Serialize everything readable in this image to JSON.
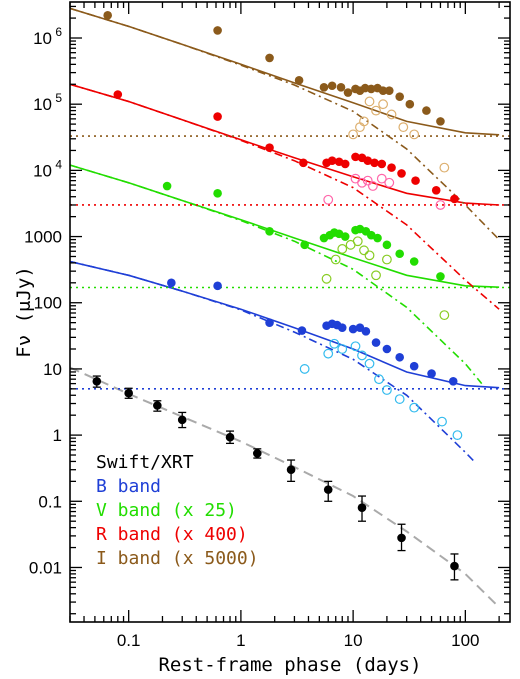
{
  "chart_data": {
    "type": "scatter",
    "title": "",
    "xlabel": "Rest-frame phase (days)",
    "ylabel": "Fν (μJy)",
    "x_scale": "log",
    "y_scale": "log",
    "xlim": [
      0.03,
      250
    ],
    "ylim": [
      0.0015,
      3500000
    ],
    "x_major_ticks": [
      {
        "value": 0.1,
        "label": "0.1"
      },
      {
        "value": 1,
        "label": "1"
      },
      {
        "value": 10,
        "label": "10"
      },
      {
        "value": 100,
        "label": "100"
      }
    ],
    "y_major_ticks": [
      {
        "value": 0.01,
        "label": "0.01"
      },
      {
        "value": 0.1,
        "label": "0.1"
      },
      {
        "value": 1,
        "label": "1"
      },
      {
        "value": 10,
        "label": "10"
      },
      {
        "value": 100,
        "label": "100"
      },
      {
        "value": 1000,
        "label": "1000"
      },
      {
        "value": 10000,
        "label": "10",
        "exponent": "4"
      },
      {
        "value": 100000,
        "label": "10",
        "exponent": "5"
      },
      {
        "value": 1000000,
        "label": "10",
        "exponent": "6"
      }
    ],
    "grid": false,
    "legend_position": "bottom-left",
    "legend": [
      {
        "label": "Swift/XRT",
        "color": "#000000"
      },
      {
        "label": "B band",
        "color": "#1f3fd6"
      },
      {
        "label": "V band (x 25)",
        "color": "#22dd00"
      },
      {
        "label": "R band (x 400)",
        "color": "#ee0000"
      },
      {
        "label": "I band (x 5000)",
        "color": "#8b5a1b"
      }
    ],
    "series": [
      {
        "name": "Swift/XRT",
        "color": "#000000",
        "marker": "filled-circle",
        "points": [
          {
            "x": 0.052,
            "y": 6.5,
            "ylo": 5.3,
            "yhi": 7.8
          },
          {
            "x": 0.1,
            "y": 4.3,
            "ylo": 3.6,
            "yhi": 5.1
          },
          {
            "x": 0.18,
            "y": 2.8,
            "ylo": 2.3,
            "yhi": 3.3
          },
          {
            "x": 0.3,
            "y": 1.7,
            "ylo": 1.3,
            "yhi": 2.2
          },
          {
            "x": 0.8,
            "y": 0.93,
            "ylo": 0.75,
            "yhi": 1.15
          },
          {
            "x": 1.4,
            "y": 0.53,
            "ylo": 0.45,
            "yhi": 0.62
          },
          {
            "x": 2.8,
            "y": 0.3,
            "ylo": 0.2,
            "yhi": 0.42
          },
          {
            "x": 6,
            "y": 0.15,
            "ylo": 0.1,
            "yhi": 0.2
          },
          {
            "x": 12,
            "y": 0.08,
            "ylo": 0.05,
            "yhi": 0.12
          },
          {
            "x": 27,
            "y": 0.028,
            "ylo": 0.018,
            "yhi": 0.045
          },
          {
            "x": 80,
            "y": 0.0105,
            "ylo": 0.0065,
            "yhi": 0.016
          }
        ]
      },
      {
        "name": "B band",
        "color": "#1f3fd6",
        "open_color": "#33bbee",
        "points_filled": [
          {
            "x": 0.24,
            "y": 200
          },
          {
            "x": 0.62,
            "y": 180
          },
          {
            "x": 1.8,
            "y": 50
          },
          {
            "x": 3.5,
            "y": 38
          },
          {
            "x": 5.8,
            "y": 45
          },
          {
            "x": 6.5,
            "y": 48
          },
          {
            "x": 7.2,
            "y": 46
          },
          {
            "x": 8,
            "y": 42
          },
          {
            "x": 10,
            "y": 40
          },
          {
            "x": 11.5,
            "y": 42
          },
          {
            "x": 13,
            "y": 37
          },
          {
            "x": 16,
            "y": 25
          },
          {
            "x": 20,
            "y": 20
          },
          {
            "x": 26,
            "y": 15
          },
          {
            "x": 35,
            "y": 11
          },
          {
            "x": 50,
            "y": 8.5
          },
          {
            "x": 78,
            "y": 6.5
          }
        ],
        "points_open": [
          {
            "x": 3.7,
            "y": 10
          },
          {
            "x": 6,
            "y": 17
          },
          {
            "x": 6.8,
            "y": 24
          },
          {
            "x": 8,
            "y": 20
          },
          {
            "x": 10.5,
            "y": 22
          },
          {
            "x": 12,
            "y": 16
          },
          {
            "x": 14,
            "y": 12
          },
          {
            "x": 17,
            "y": 7
          },
          {
            "x": 20,
            "y": 4.8
          },
          {
            "x": 26,
            "y": 3.5
          },
          {
            "x": 35,
            "y": 2.6
          },
          {
            "x": 62,
            "y": 1.6
          },
          {
            "x": 85,
            "y": 1
          }
        ],
        "model_a": [
          {
            "x": 0.03,
            "y": 420
          },
          {
            "x": 0.1,
            "y": 260
          },
          {
            "x": 0.3,
            "y": 150
          },
          {
            "x": 1,
            "y": 80
          },
          {
            "x": 3,
            "y": 42
          },
          {
            "x": 10,
            "y": 20
          },
          {
            "x": 30,
            "y": 9
          },
          {
            "x": 100,
            "y": 5.6
          },
          {
            "x": 200,
            "y": 5.2
          }
        ],
        "model_b": [
          {
            "x": 0.03,
            "y": 420
          },
          {
            "x": 0.1,
            "y": 260
          },
          {
            "x": 0.3,
            "y": 150
          },
          {
            "x": 1,
            "y": 78
          },
          {
            "x": 3,
            "y": 36
          },
          {
            "x": 10,
            "y": 14
          },
          {
            "x": 30,
            "y": 4
          },
          {
            "x": 100,
            "y": 0.55
          },
          {
            "x": 120,
            "y": 0.4
          }
        ],
        "baseline": 5
      },
      {
        "name": "V band (x 25)",
        "color": "#22dd00",
        "open_color": "#88cc22",
        "points_filled": [
          {
            "x": 0.22,
            "y": 5800
          },
          {
            "x": 0.62,
            "y": 4500
          },
          {
            "x": 1.8,
            "y": 1200
          },
          {
            "x": 3.7,
            "y": 750
          },
          {
            "x": 5.5,
            "y": 950
          },
          {
            "x": 6.2,
            "y": 1050
          },
          {
            "x": 6.8,
            "y": 1150
          },
          {
            "x": 7.5,
            "y": 1100
          },
          {
            "x": 8.5,
            "y": 1000
          },
          {
            "x": 10.5,
            "y": 1250
          },
          {
            "x": 11.5,
            "y": 1300
          },
          {
            "x": 13,
            "y": 1200
          },
          {
            "x": 14.5,
            "y": 1050
          },
          {
            "x": 16.5,
            "y": 950
          },
          {
            "x": 20,
            "y": 750
          },
          {
            "x": 26,
            "y": 550
          },
          {
            "x": 35,
            "y": 420
          },
          {
            "x": 60,
            "y": 250
          }
        ],
        "points_open": [
          {
            "x": 5.8,
            "y": 230
          },
          {
            "x": 7,
            "y": 450
          },
          {
            "x": 8,
            "y": 650
          },
          {
            "x": 9.5,
            "y": 750
          },
          {
            "x": 11,
            "y": 850
          },
          {
            "x": 12.5,
            "y": 620
          },
          {
            "x": 14,
            "y": 520
          },
          {
            "x": 16,
            "y": 260
          },
          {
            "x": 20,
            "y": 450
          },
          {
            "x": 65,
            "y": 65
          }
        ],
        "model_a": [
          {
            "x": 0.03,
            "y": 12000
          },
          {
            "x": 0.1,
            "y": 6500
          },
          {
            "x": 0.3,
            "y": 3500
          },
          {
            "x": 1,
            "y": 1800
          },
          {
            "x": 3,
            "y": 950
          },
          {
            "x": 10,
            "y": 480
          },
          {
            "x": 30,
            "y": 260
          },
          {
            "x": 100,
            "y": 180
          },
          {
            "x": 200,
            "y": 172
          }
        ],
        "model_b": [
          {
            "x": 0.03,
            "y": 12000
          },
          {
            "x": 0.1,
            "y": 6500
          },
          {
            "x": 0.3,
            "y": 3500
          },
          {
            "x": 1,
            "y": 1750
          },
          {
            "x": 3,
            "y": 850
          },
          {
            "x": 10,
            "y": 320
          },
          {
            "x": 30,
            "y": 85
          },
          {
            "x": 100,
            "y": 12
          },
          {
            "x": 140,
            "y": 6
          }
        ],
        "baseline": 170
      },
      {
        "name": "R band (x 400)",
        "color": "#ee0000",
        "open_color": "#ff66aa",
        "points_filled": [
          {
            "x": 0.08,
            "y": 140000
          },
          {
            "x": 0.62,
            "y": 65000
          },
          {
            "x": 1.8,
            "y": 22000
          },
          {
            "x": 3.6,
            "y": 13000
          },
          {
            "x": 5.8,
            "y": 13000
          },
          {
            "x": 6.5,
            "y": 14000
          },
          {
            "x": 7.5,
            "y": 13500
          },
          {
            "x": 8.5,
            "y": 12500
          },
          {
            "x": 10.5,
            "y": 16000
          },
          {
            "x": 12,
            "y": 15500
          },
          {
            "x": 13.5,
            "y": 14000
          },
          {
            "x": 15.5,
            "y": 13000
          },
          {
            "x": 18,
            "y": 12500
          },
          {
            "x": 22,
            "y": 11000
          },
          {
            "x": 27,
            "y": 9000
          },
          {
            "x": 36,
            "y": 7000
          },
          {
            "x": 55,
            "y": 5000
          },
          {
            "x": 80,
            "y": 3700
          }
        ],
        "points_open": [
          {
            "x": 6,
            "y": 3600
          },
          {
            "x": 10.5,
            "y": 7500
          },
          {
            "x": 12,
            "y": 6500
          },
          {
            "x": 13.5,
            "y": 7000
          },
          {
            "x": 15,
            "y": 5800
          },
          {
            "x": 18,
            "y": 7500
          },
          {
            "x": 21,
            "y": 6500
          },
          {
            "x": 60,
            "y": 3000
          }
        ],
        "model_a": [
          {
            "x": 0.03,
            "y": 200000
          },
          {
            "x": 0.1,
            "y": 110000
          },
          {
            "x": 0.3,
            "y": 58000
          },
          {
            "x": 1,
            "y": 29000
          },
          {
            "x": 3,
            "y": 15500
          },
          {
            "x": 10,
            "y": 8000
          },
          {
            "x": 30,
            "y": 4500
          },
          {
            "x": 100,
            "y": 3200
          },
          {
            "x": 200,
            "y": 3000
          }
        ],
        "model_b": [
          {
            "x": 0.03,
            "y": 200000
          },
          {
            "x": 0.1,
            "y": 110000
          },
          {
            "x": 0.3,
            "y": 58000
          },
          {
            "x": 1,
            "y": 28500
          },
          {
            "x": 3,
            "y": 14000
          },
          {
            "x": 10,
            "y": 5500
          },
          {
            "x": 30,
            "y": 1500
          },
          {
            "x": 100,
            "y": 220
          },
          {
            "x": 200,
            "y": 80
          }
        ],
        "baseline": 3000
      },
      {
        "name": "I band (x 5000)",
        "color": "#8b5a1b",
        "open_color": "#ddb070",
        "points_filled": [
          {
            "x": 0.065,
            "y": 2200000
          },
          {
            "x": 0.62,
            "y": 1300000
          },
          {
            "x": 1.8,
            "y": 500000
          },
          {
            "x": 3.3,
            "y": 230000
          },
          {
            "x": 5.5,
            "y": 180000
          },
          {
            "x": 6.5,
            "y": 190000
          },
          {
            "x": 7.8,
            "y": 180000
          },
          {
            "x": 9,
            "y": 150000
          },
          {
            "x": 10.5,
            "y": 170000
          },
          {
            "x": 11.5,
            "y": 160000
          },
          {
            "x": 12.8,
            "y": 175000
          },
          {
            "x": 14.5,
            "y": 170000
          },
          {
            "x": 16.5,
            "y": 175000
          },
          {
            "x": 18.5,
            "y": 160000
          },
          {
            "x": 21,
            "y": 160000
          },
          {
            "x": 26,
            "y": 130000
          },
          {
            "x": 32,
            "y": 100000
          },
          {
            "x": 45,
            "y": 80000
          },
          {
            "x": 60,
            "y": 55000
          }
        ],
        "points_open": [
          {
            "x": 10,
            "y": 35000
          },
          {
            "x": 11.5,
            "y": 45000
          },
          {
            "x": 12.5,
            "y": 55000
          },
          {
            "x": 14,
            "y": 110000
          },
          {
            "x": 16,
            "y": 80000
          },
          {
            "x": 18.5,
            "y": 100000
          },
          {
            "x": 22,
            "y": 70000
          },
          {
            "x": 28,
            "y": 45000
          },
          {
            "x": 35,
            "y": 35000
          },
          {
            "x": 65,
            "y": 11000
          }
        ],
        "model_a": [
          {
            "x": 0.03,
            "y": 2800000
          },
          {
            "x": 0.1,
            "y": 1500000
          },
          {
            "x": 0.3,
            "y": 800000
          },
          {
            "x": 1,
            "y": 400000
          },
          {
            "x": 3,
            "y": 210000
          },
          {
            "x": 10,
            "y": 105000
          },
          {
            "x": 30,
            "y": 55000
          },
          {
            "x": 100,
            "y": 37000
          },
          {
            "x": 200,
            "y": 34500
          }
        ],
        "model_b": [
          {
            "x": 0.03,
            "y": 2800000
          },
          {
            "x": 0.1,
            "y": 1500000
          },
          {
            "x": 0.3,
            "y": 800000
          },
          {
            "x": 1,
            "y": 390000
          },
          {
            "x": 3,
            "y": 195000
          },
          {
            "x": 10,
            "y": 78000
          },
          {
            "x": 30,
            "y": 21000
          },
          {
            "x": 100,
            "y": 3000
          },
          {
            "x": 200,
            "y": 900
          }
        ],
        "baseline": 33000
      }
    ],
    "xrt_model": {
      "color": "#aaaaaa",
      "style": "dashed",
      "points": [
        {
          "x": 0.03,
          "y": 10.5
        },
        {
          "x": 0.1,
          "y": 4.2
        },
        {
          "x": 0.3,
          "y": 1.9
        },
        {
          "x": 1,
          "y": 0.8
        },
        {
          "x": 3,
          "y": 0.33
        },
        {
          "x": 10,
          "y": 0.12
        },
        {
          "x": 30,
          "y": 0.035
        },
        {
          "x": 100,
          "y": 0.008
        },
        {
          "x": 200,
          "y": 0.0025
        }
      ]
    }
  }
}
